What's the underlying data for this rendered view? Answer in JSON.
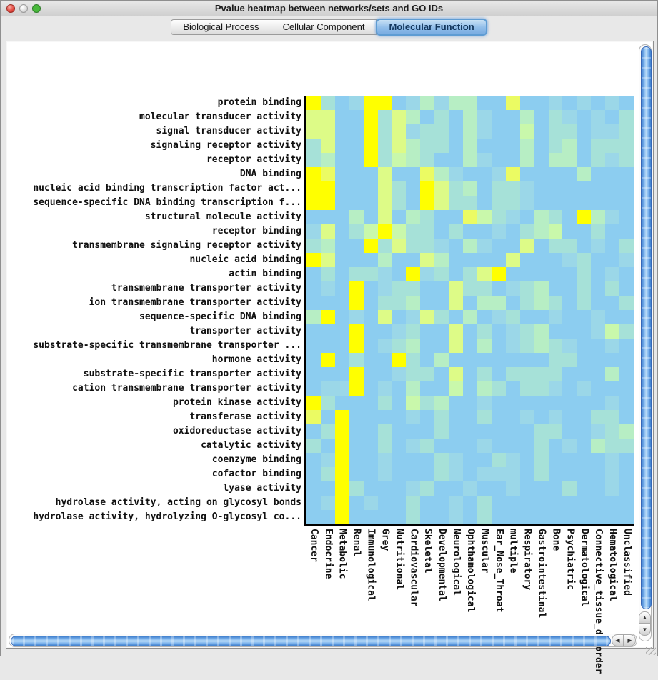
{
  "window": {
    "title": "Pvalue heatmap between networks/sets and GO IDs"
  },
  "tabs": [
    {
      "label": "Biological Process",
      "selected": false
    },
    {
      "label": "Cellular Component",
      "selected": false
    },
    {
      "label": "Molecular Function",
      "selected": true
    }
  ],
  "scrollbar_icons": {
    "up": "▲",
    "down": "▼",
    "left": "◀",
    "right": "▶"
  },
  "chart_data": {
    "type": "heatmap",
    "title": "Pvalue heatmap between networks/sets and GO IDs",
    "xlabel": "",
    "ylabel": "",
    "grid": false,
    "legend": "none",
    "palette": [
      "#8CCDF0",
      "#9BD7E8",
      "#A6E1D8",
      "#B7EEC4",
      "#C9F8AB",
      "#DDFB87",
      "#EBFB63",
      "#FFFF00"
    ],
    "palette_scale": "0 = sky blue (high p-value) to 7 = bright yellow (low p-value)",
    "rows": [
      "protein binding",
      "molecular transducer activity",
      "signal transducer activity",
      "signaling receptor activity",
      "receptor activity",
      "DNA binding",
      "nucleic acid binding transcription factor act...",
      "sequence-specific DNA binding transcription f...",
      "structural molecule activity",
      "receptor binding",
      "transmembrane signaling receptor activity",
      "nucleic acid binding",
      "actin binding",
      "transmembrane transporter activity",
      "ion transmembrane transporter activity",
      "sequence-specific DNA binding",
      "transporter activity",
      "substrate-specific transmembrane transporter ...",
      "hormone activity",
      "substrate-specific transporter activity",
      "cation transmembrane transporter activity",
      "protein kinase activity",
      "transferase activity",
      "oxidoreductase activity",
      "catalytic activity",
      "coenzyme binding",
      "cofactor binding",
      "lyase activity",
      "hydrolase activity, acting on glycosyl bonds",
      "hydrolase activity, hydrolyzing O-glycosyl co..."
    ],
    "columns": [
      "Cancer",
      "Endocrine",
      "Metabolic",
      "Renal",
      "Immunological",
      "Grey",
      "Nutritional",
      "Cardiovascular",
      "Skeletal",
      "Developmental",
      "Neurological",
      "Ophthamological",
      "Muscular",
      "Ear_Nose_Throat",
      "multiple",
      "Respiratory",
      "Gastrointestinal",
      "Bone",
      "Psychiatric",
      "Dermatological",
      "Connective_tissue_disorder",
      "Hematological",
      "Unclassified"
    ],
    "matrix": [
      [
        7,
        2,
        0,
        1,
        7,
        7,
        0,
        1,
        3,
        1,
        3,
        3,
        0,
        0,
        6,
        0,
        0,
        1,
        0,
        1,
        0,
        1,
        0
      ],
      [
        5,
        5,
        0,
        0,
        7,
        2,
        5,
        3,
        0,
        2,
        0,
        3,
        1,
        0,
        0,
        3,
        0,
        2,
        1,
        0,
        1,
        0,
        2
      ],
      [
        5,
        5,
        0,
        0,
        7,
        2,
        5,
        1,
        2,
        2,
        0,
        3,
        1,
        0,
        0,
        4,
        0,
        2,
        2,
        0,
        1,
        1,
        2
      ],
      [
        2,
        5,
        0,
        0,
        7,
        2,
        5,
        3,
        2,
        2,
        0,
        3,
        0,
        0,
        0,
        3,
        0,
        2,
        3,
        0,
        2,
        2,
        2
      ],
      [
        2,
        3,
        0,
        0,
        7,
        2,
        4,
        3,
        2,
        0,
        0,
        3,
        1,
        0,
        0,
        3,
        0,
        3,
        3,
        0,
        2,
        1,
        2
      ],
      [
        7,
        6,
        0,
        0,
        0,
        5,
        0,
        0,
        6,
        3,
        1,
        0,
        0,
        1,
        6,
        0,
        0,
        0,
        0,
        3,
        0,
        0,
        0
      ],
      [
        7,
        7,
        0,
        0,
        0,
        5,
        2,
        0,
        7,
        5,
        2,
        3,
        0,
        2,
        2,
        1,
        0,
        0,
        0,
        0,
        0,
        0,
        0
      ],
      [
        7,
        7,
        0,
        0,
        0,
        5,
        2,
        0,
        7,
        5,
        2,
        2,
        0,
        2,
        2,
        1,
        0,
        0,
        0,
        0,
        0,
        0,
        0
      ],
      [
        0,
        0,
        0,
        3,
        0,
        5,
        0,
        3,
        2,
        0,
        0,
        6,
        4,
        2,
        1,
        0,
        3,
        2,
        0,
        7,
        3,
        1,
        0
      ],
      [
        1,
        5,
        0,
        2,
        4,
        7,
        4,
        2,
        2,
        0,
        2,
        0,
        0,
        1,
        0,
        2,
        3,
        4,
        0,
        0,
        2,
        0,
        0
      ],
      [
        2,
        3,
        0,
        0,
        7,
        2,
        5,
        2,
        2,
        1,
        0,
        3,
        1,
        0,
        0,
        5,
        0,
        2,
        2,
        0,
        1,
        0,
        2
      ],
      [
        7,
        5,
        0,
        0,
        0,
        3,
        0,
        0,
        5,
        3,
        0,
        0,
        0,
        0,
        5,
        0,
        0,
        0,
        1,
        2,
        0,
        0,
        1
      ],
      [
        0,
        2,
        0,
        2,
        2,
        1,
        0,
        7,
        1,
        2,
        0,
        2,
        5,
        7,
        0,
        0,
        0,
        0,
        0,
        2,
        0,
        1,
        0
      ],
      [
        0,
        1,
        0,
        7,
        0,
        1,
        2,
        2,
        0,
        0,
        5,
        2,
        2,
        0,
        1,
        2,
        3,
        0,
        0,
        2,
        0,
        2,
        0
      ],
      [
        0,
        0,
        0,
        7,
        0,
        2,
        2,
        3,
        0,
        0,
        5,
        0,
        3,
        3,
        0,
        2,
        3,
        2,
        0,
        2,
        0,
        0,
        2
      ],
      [
        3,
        7,
        0,
        1,
        0,
        5,
        0,
        1,
        5,
        2,
        0,
        3,
        0,
        1,
        2,
        0,
        0,
        1,
        0,
        0,
        1,
        0,
        0
      ],
      [
        0,
        0,
        0,
        7,
        0,
        0,
        1,
        2,
        0,
        0,
        5,
        0,
        2,
        0,
        1,
        2,
        3,
        0,
        0,
        0,
        1,
        4,
        2
      ],
      [
        0,
        0,
        0,
        7,
        0,
        1,
        2,
        3,
        0,
        0,
        5,
        0,
        3,
        0,
        1,
        2,
        3,
        2,
        1,
        0,
        0,
        1,
        0
      ],
      [
        0,
        7,
        0,
        2,
        0,
        0,
        7,
        2,
        0,
        3,
        0,
        0,
        0,
        0,
        0,
        0,
        0,
        2,
        2,
        0,
        0,
        0,
        0
      ],
      [
        0,
        0,
        0,
        7,
        0,
        0,
        1,
        2,
        2,
        0,
        5,
        0,
        2,
        0,
        2,
        2,
        2,
        2,
        0,
        0,
        0,
        3,
        0
      ],
      [
        0,
        1,
        1,
        7,
        0,
        1,
        0,
        3,
        0,
        0,
        4,
        0,
        3,
        2,
        0,
        2,
        2,
        1,
        0,
        1,
        0,
        0,
        0
      ],
      [
        7,
        2,
        0,
        0,
        0,
        2,
        0,
        4,
        2,
        3,
        0,
        0,
        1,
        0,
        0,
        0,
        0,
        0,
        0,
        0,
        0,
        1,
        0
      ],
      [
        6,
        0,
        7,
        0,
        0,
        0,
        0,
        1,
        0,
        2,
        0,
        0,
        2,
        0,
        0,
        1,
        0,
        1,
        0,
        0,
        2,
        2,
        0
      ],
      [
        0,
        2,
        7,
        0,
        0,
        2,
        0,
        0,
        0,
        2,
        0,
        0,
        0,
        0,
        0,
        0,
        2,
        2,
        0,
        0,
        1,
        2,
        3
      ],
      [
        2,
        0,
        7,
        0,
        0,
        2,
        0,
        1,
        2,
        0,
        0,
        0,
        1,
        0,
        0,
        0,
        2,
        0,
        1,
        0,
        3,
        2,
        2
      ],
      [
        0,
        1,
        7,
        0,
        0,
        1,
        0,
        0,
        0,
        2,
        1,
        0,
        0,
        2,
        1,
        0,
        2,
        0,
        0,
        0,
        0,
        1,
        0
      ],
      [
        0,
        2,
        7,
        0,
        0,
        1,
        0,
        0,
        0,
        2,
        1,
        0,
        1,
        1,
        1,
        0,
        2,
        0,
        0,
        0,
        0,
        1,
        0
      ],
      [
        0,
        0,
        7,
        2,
        0,
        0,
        0,
        1,
        2,
        0,
        0,
        1,
        0,
        0,
        1,
        0,
        0,
        0,
        2,
        0,
        0,
        1,
        0
      ],
      [
        0,
        1,
        7,
        0,
        1,
        0,
        0,
        2,
        0,
        0,
        1,
        0,
        2,
        0,
        0,
        0,
        0,
        0,
        0,
        0,
        0,
        0,
        0
      ],
      [
        0,
        0,
        7,
        0,
        0,
        0,
        0,
        2,
        0,
        0,
        1,
        0,
        2,
        0,
        0,
        0,
        0,
        0,
        0,
        0,
        0,
        0,
        0
      ]
    ]
  }
}
